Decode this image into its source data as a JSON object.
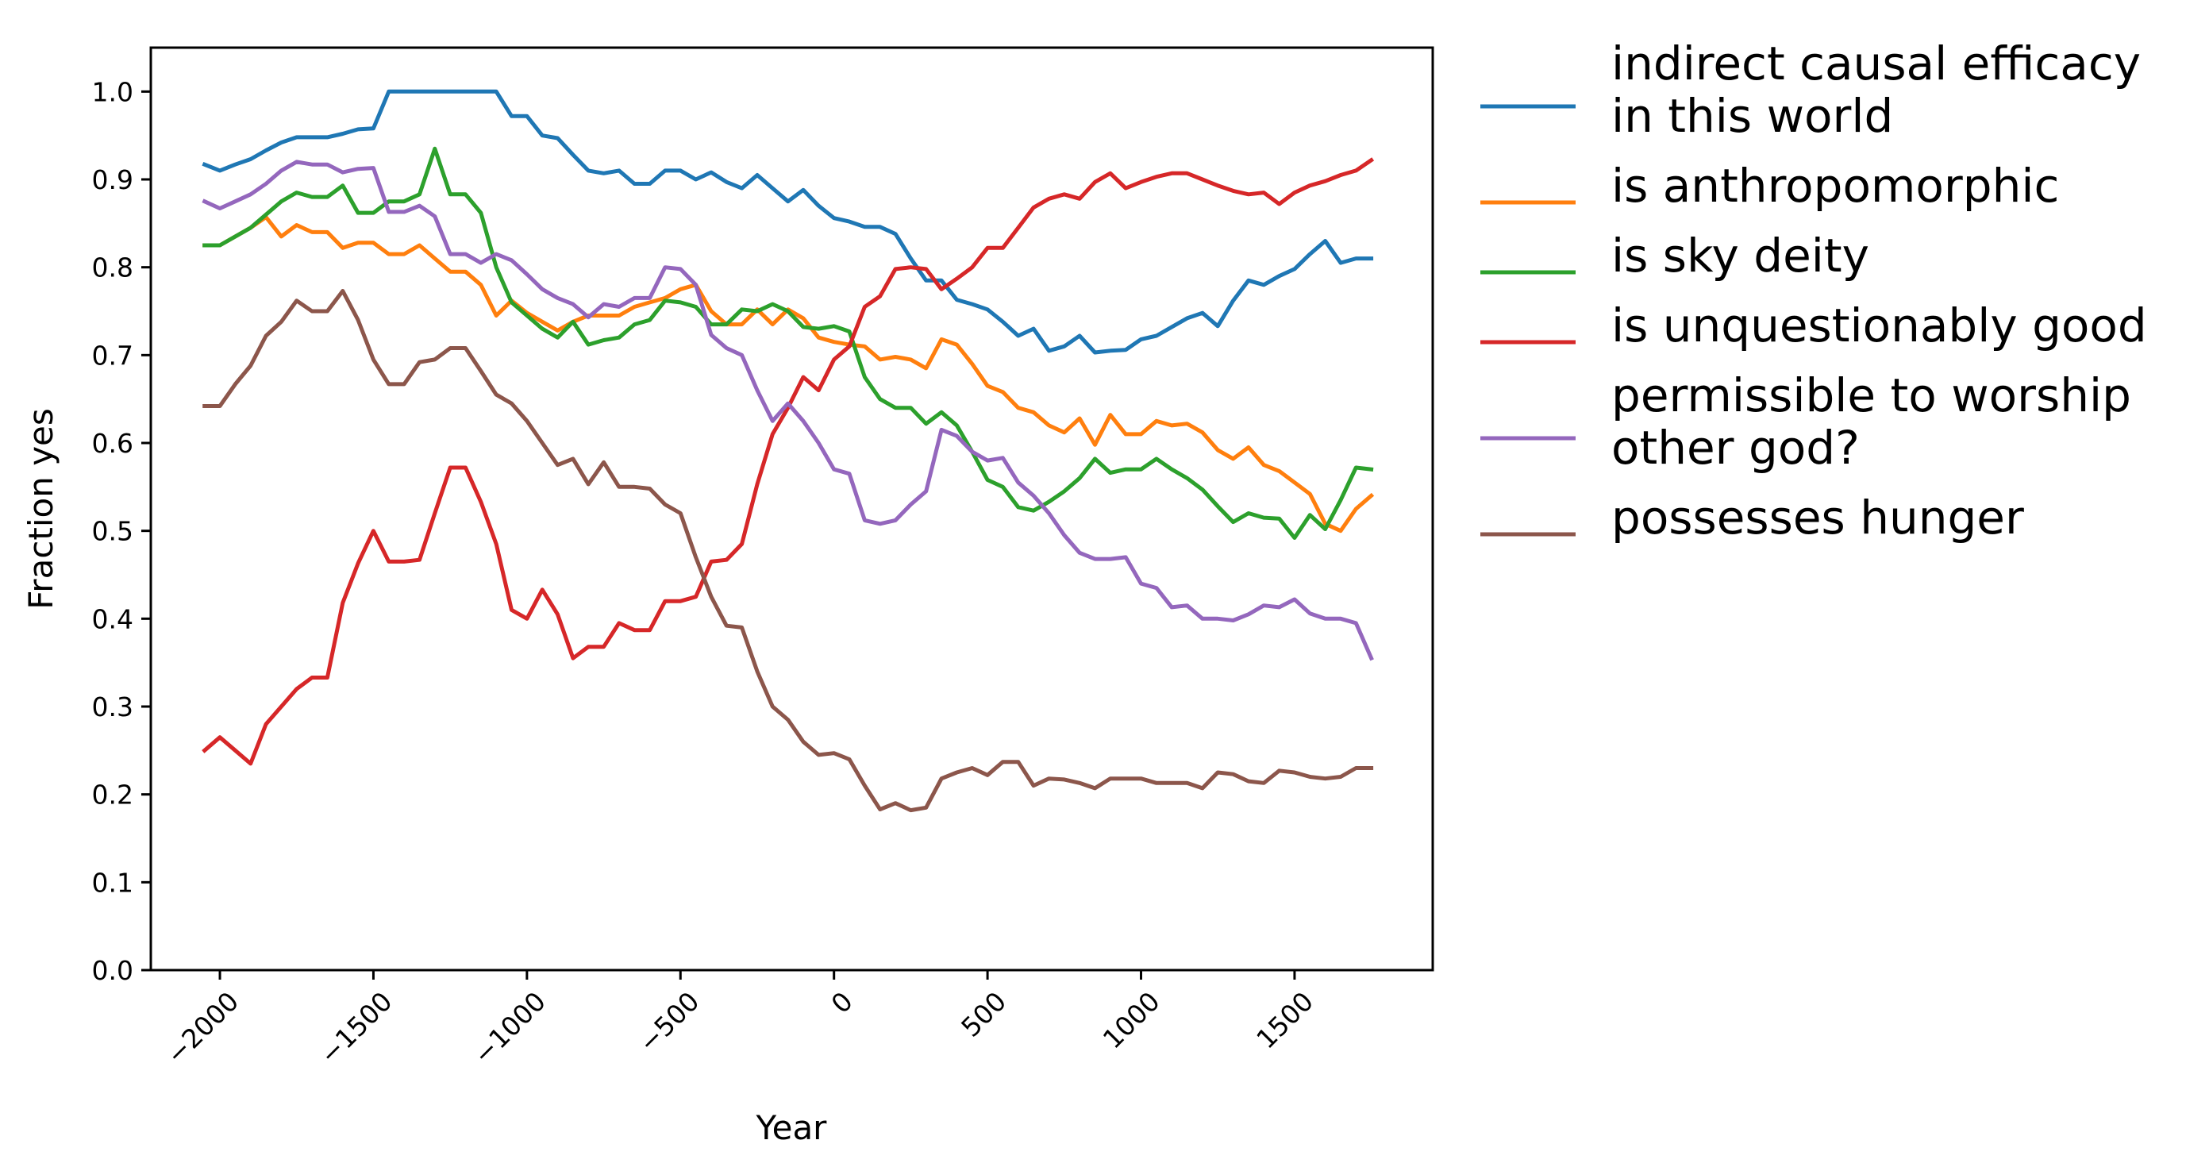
{
  "chart_data": {
    "type": "line",
    "xlabel": "Year",
    "ylabel": "Fraction yes",
    "xlim": [
      -2225,
      1950
    ],
    "ylim": [
      0.0,
      1.05
    ],
    "xticks": [
      -2000,
      -1500,
      -1000,
      -500,
      0,
      500,
      1000,
      1500
    ],
    "xtick_labels": [
      "−2000",
      "−1500",
      "−1000",
      "−500",
      "0",
      "500",
      "1000",
      "1500"
    ],
    "yticks": [
      0.0,
      0.1,
      0.2,
      0.3,
      0.4,
      0.5,
      0.6,
      0.7,
      0.8,
      0.9,
      1.0
    ],
    "ytick_labels": [
      "0.0",
      "0.1",
      "0.2",
      "0.3",
      "0.4",
      "0.5",
      "0.6",
      "0.7",
      "0.8",
      "0.9",
      "1.0"
    ],
    "grid": false,
    "legend_position": "outside-right-top",
    "x": [
      -2050,
      -2000,
      -1950,
      -1900,
      -1850,
      -1800,
      -1750,
      -1700,
      -1650,
      -1600,
      -1550,
      -1500,
      -1450,
      -1400,
      -1350,
      -1300,
      -1250,
      -1200,
      -1150,
      -1100,
      -1050,
      -1000,
      -950,
      -900,
      -850,
      -800,
      -750,
      -700,
      -650,
      -600,
      -550,
      -500,
      -450,
      -400,
      -350,
      -300,
      -250,
      -200,
      -150,
      -100,
      -50,
      0,
      50,
      100,
      150,
      200,
      250,
      300,
      350,
      400,
      450,
      500,
      550,
      600,
      650,
      700,
      750,
      800,
      850,
      900,
      950,
      1000,
      1050,
      1100,
      1150,
      1200,
      1250,
      1300,
      1350,
      1400,
      1450,
      1500,
      1550,
      1600,
      1650,
      1700,
      1750
    ],
    "series": [
      {
        "name": "indirect causal efficacy\nin this world",
        "color": "#1f77b4",
        "values": [
          0.917,
          0.91,
          0.917,
          0.923,
          0.933,
          0.942,
          0.948,
          0.948,
          0.948,
          0.952,
          0.957,
          0.958,
          1.0,
          1.0,
          1.0,
          1.0,
          1.0,
          1.0,
          1.0,
          1.0,
          0.972,
          0.972,
          0.95,
          0.947,
          0.928,
          0.91,
          0.907,
          0.91,
          0.895,
          0.895,
          0.91,
          0.91,
          0.9,
          0.908,
          0.897,
          0.89,
          0.905,
          0.89,
          0.875,
          0.888,
          0.87,
          0.856,
          0.852,
          0.846,
          0.846,
          0.838,
          0.81,
          0.785,
          0.785,
          0.763,
          0.758,
          0.752,
          0.738,
          0.722,
          0.73,
          0.705,
          0.71,
          0.722,
          0.703,
          0.705,
          0.706,
          0.718,
          0.722,
          0.732,
          0.742,
          0.748,
          0.733,
          0.762,
          0.785,
          0.78,
          0.79,
          0.798,
          0.815,
          0.83,
          0.805,
          0.81,
          0.81
        ]
      },
      {
        "name": "is anthropomorphic",
        "color": "#ff7f0e",
        "values": [
          0.825,
          0.825,
          0.835,
          0.845,
          0.857,
          0.835,
          0.848,
          0.84,
          0.84,
          0.822,
          0.828,
          0.828,
          0.815,
          0.815,
          0.825,
          0.81,
          0.795,
          0.795,
          0.78,
          0.745,
          0.762,
          0.748,
          0.738,
          0.728,
          0.738,
          0.745,
          0.745,
          0.745,
          0.755,
          0.76,
          0.765,
          0.775,
          0.78,
          0.75,
          0.735,
          0.735,
          0.752,
          0.735,
          0.752,
          0.742,
          0.72,
          0.715,
          0.712,
          0.71,
          0.695,
          0.698,
          0.695,
          0.685,
          0.718,
          0.712,
          0.69,
          0.665,
          0.658,
          0.64,
          0.635,
          0.62,
          0.612,
          0.628,
          0.598,
          0.632,
          0.61,
          0.61,
          0.625,
          0.62,
          0.622,
          0.612,
          0.592,
          0.582,
          0.595,
          0.575,
          0.568,
          0.555,
          0.542,
          0.508,
          0.5,
          0.525,
          0.54
        ]
      },
      {
        "name": "is sky deity",
        "color": "#2ca02c",
        "values": [
          0.825,
          0.825,
          0.835,
          0.845,
          0.86,
          0.875,
          0.885,
          0.88,
          0.88,
          0.893,
          0.862,
          0.862,
          0.875,
          0.875,
          0.883,
          0.935,
          0.883,
          0.883,
          0.862,
          0.8,
          0.76,
          0.745,
          0.73,
          0.72,
          0.738,
          0.712,
          0.717,
          0.72,
          0.735,
          0.74,
          0.762,
          0.76,
          0.755,
          0.735,
          0.735,
          0.752,
          0.75,
          0.758,
          0.75,
          0.732,
          0.73,
          0.733,
          0.727,
          0.675,
          0.65,
          0.64,
          0.64,
          0.622,
          0.635,
          0.62,
          0.59,
          0.558,
          0.55,
          0.527,
          0.523,
          0.533,
          0.545,
          0.56,
          0.582,
          0.566,
          0.57,
          0.57,
          0.582,
          0.57,
          0.56,
          0.547,
          0.528,
          0.51,
          0.52,
          0.515,
          0.514,
          0.492,
          0.518,
          0.502,
          0.535,
          0.572,
          0.57
        ]
      },
      {
        "name": "is unquestionably good",
        "color": "#d62728",
        "values": [
          0.25,
          0.265,
          0.25,
          0.235,
          0.28,
          0.3,
          0.32,
          0.333,
          0.333,
          0.418,
          0.463,
          0.5,
          0.465,
          0.465,
          0.467,
          0.52,
          0.572,
          0.572,
          0.533,
          0.485,
          0.41,
          0.4,
          0.433,
          0.405,
          0.355,
          0.368,
          0.368,
          0.395,
          0.387,
          0.387,
          0.42,
          0.42,
          0.425,
          0.465,
          0.467,
          0.485,
          0.553,
          0.61,
          0.64,
          0.675,
          0.66,
          0.695,
          0.71,
          0.755,
          0.767,
          0.798,
          0.8,
          0.798,
          0.775,
          0.787,
          0.8,
          0.822,
          0.822,
          0.845,
          0.868,
          0.878,
          0.883,
          0.878,
          0.897,
          0.907,
          0.89,
          0.897,
          0.903,
          0.907,
          0.907,
          0.9,
          0.893,
          0.887,
          0.883,
          0.885,
          0.872,
          0.885,
          0.893,
          0.898,
          0.905,
          0.91,
          0.922
        ]
      },
      {
        "name": "permissible to worship\nother god?",
        "color": "#9467bd",
        "values": [
          0.875,
          0.867,
          0.875,
          0.883,
          0.895,
          0.91,
          0.92,
          0.917,
          0.917,
          0.908,
          0.912,
          0.913,
          0.863,
          0.863,
          0.87,
          0.858,
          0.815,
          0.815,
          0.805,
          0.815,
          0.808,
          0.792,
          0.775,
          0.765,
          0.758,
          0.743,
          0.758,
          0.755,
          0.765,
          0.765,
          0.8,
          0.798,
          0.78,
          0.723,
          0.708,
          0.7,
          0.66,
          0.625,
          0.645,
          0.625,
          0.6,
          0.57,
          0.565,
          0.512,
          0.508,
          0.512,
          0.53,
          0.545,
          0.615,
          0.608,
          0.59,
          0.58,
          0.583,
          0.555,
          0.54,
          0.52,
          0.495,
          0.475,
          0.468,
          0.468,
          0.47,
          0.44,
          0.435,
          0.413,
          0.415,
          0.4,
          0.4,
          0.398,
          0.405,
          0.415,
          0.413,
          0.422,
          0.406,
          0.4,
          0.4,
          0.395,
          0.355
        ]
      },
      {
        "name": "possesses hunger",
        "color": "#8c564b",
        "values": [
          0.642,
          0.642,
          0.667,
          0.688,
          0.722,
          0.738,
          0.762,
          0.75,
          0.75,
          0.773,
          0.74,
          0.695,
          0.667,
          0.667,
          0.692,
          0.695,
          0.708,
          0.708,
          0.682,
          0.655,
          0.645,
          0.625,
          0.6,
          0.575,
          0.582,
          0.553,
          0.578,
          0.55,
          0.55,
          0.548,
          0.53,
          0.52,
          0.47,
          0.425,
          0.392,
          0.39,
          0.34,
          0.3,
          0.285,
          0.26,
          0.245,
          0.247,
          0.24,
          0.21,
          0.183,
          0.19,
          0.182,
          0.185,
          0.218,
          0.225,
          0.23,
          0.222,
          0.237,
          0.237,
          0.21,
          0.218,
          0.217,
          0.213,
          0.207,
          0.218,
          0.218,
          0.218,
          0.213,
          0.213,
          0.213,
          0.207,
          0.225,
          0.223,
          0.215,
          0.213,
          0.227,
          0.225,
          0.22,
          0.218,
          0.22,
          0.23,
          0.23
        ]
      }
    ]
  }
}
